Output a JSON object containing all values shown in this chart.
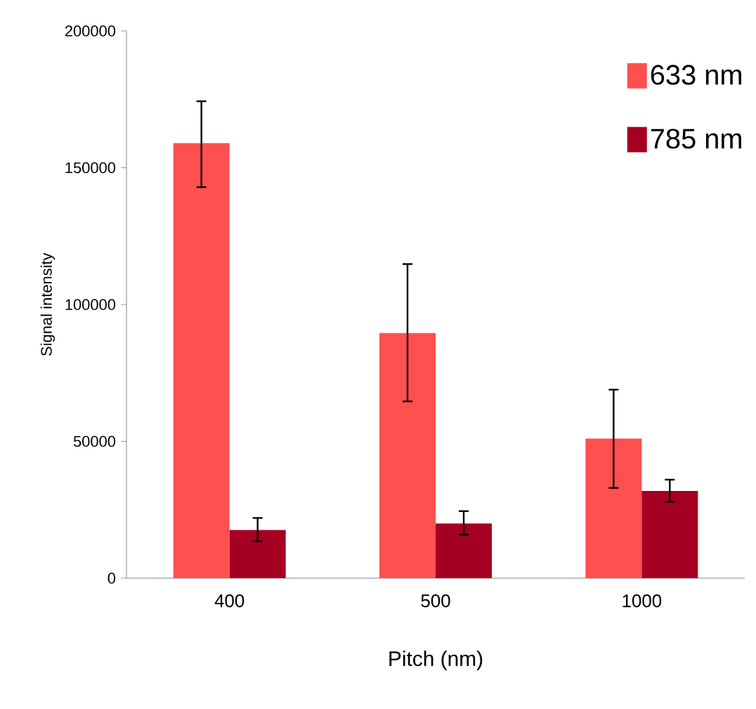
{
  "chart_data": {
    "type": "bar",
    "xlabel": "Pitch (nm)",
    "ylabel": "Signal intensity",
    "categories": [
      "400",
      "500",
      "1000"
    ],
    "series": [
      {
        "name": "633 nm",
        "color": "#ff5050",
        "values": [
          159000,
          89600,
          51000
        ],
        "errors": [
          [
            142900,
            174300
          ],
          [
            64600,
            114800
          ],
          [
            33000,
            68900
          ]
        ]
      },
      {
        "name": "785 nm",
        "color": "#a50021",
        "values": [
          17600,
          20000,
          31900
        ],
        "errors": [
          [
            13500,
            22000
          ],
          [
            15900,
            24500
          ],
          [
            27900,
            36000
          ]
        ]
      }
    ],
    "ylim": [
      0,
      200000
    ],
    "yticks": [
      0,
      50000,
      100000,
      150000,
      200000
    ],
    "grid": false,
    "legend": "top right"
  }
}
